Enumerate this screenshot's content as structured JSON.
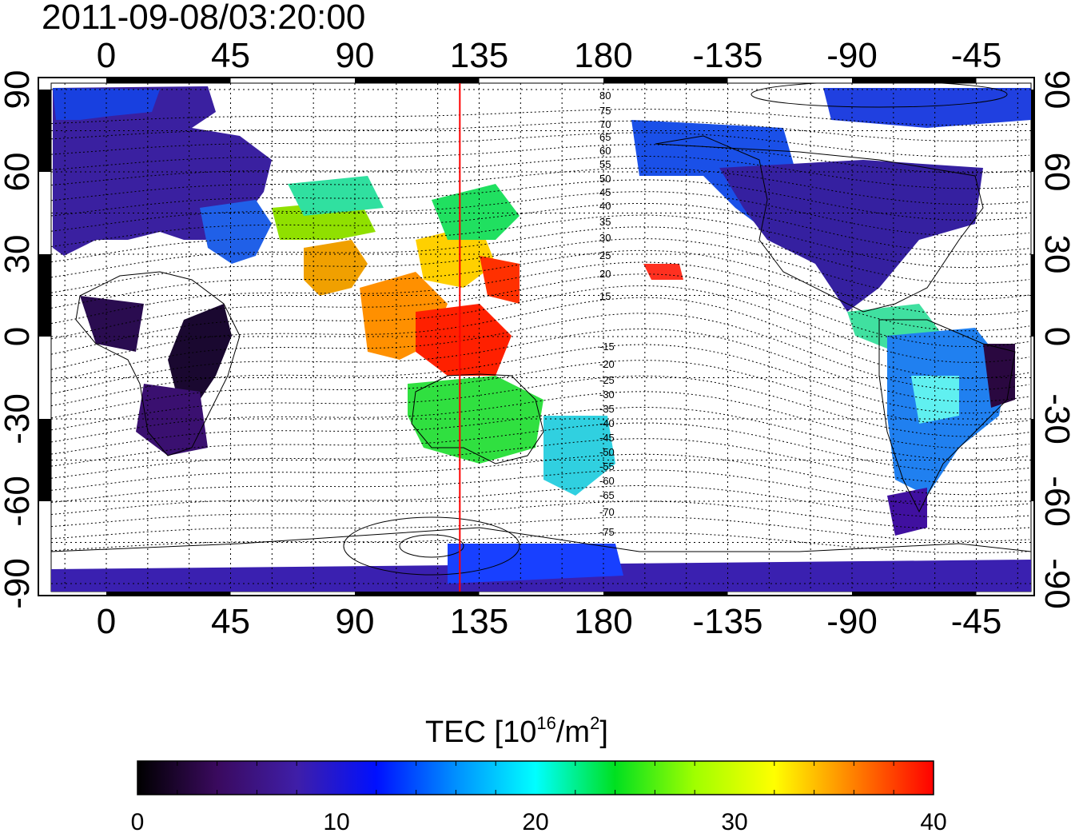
{
  "map": {
    "title": "2011-09-08/03:20:00",
    "projection": "equirectangular",
    "top_longitude_labels": [
      "0",
      "45",
      "90",
      "135",
      "180",
      "-135",
      "-90",
      "-45"
    ],
    "bottom_longitude_labels": [
      "0",
      "45",
      "90",
      "135",
      "180",
      "-135",
      "-90",
      "-45"
    ],
    "left_latitude_labels": [
      "90",
      "60",
      "30",
      "0",
      "-30",
      "-60",
      "-90"
    ],
    "right_latitude_labels": [
      "90",
      "60",
      "30",
      "0",
      "-30",
      "-60",
      "-90"
    ],
    "magnetic_latitude_labels": [
      "80",
      "75",
      "70",
      "65",
      "60",
      "55",
      "50",
      "45",
      "40",
      "35",
      "30",
      "25",
      "20",
      "15",
      "-15",
      "-20",
      "-25",
      "-30",
      "-35",
      "-40",
      "-45",
      "-50",
      "-55",
      "-60",
      "-65",
      "-70",
      "-75"
    ],
    "marker_line_longitude": 128,
    "marker_line_color": "#ff0000"
  },
  "colorbar": {
    "title_main": "TEC  [10",
    "title_exp1": "16",
    "title_mid": "/m",
    "title_exp2": "2",
    "title_end": "]",
    "min": 0,
    "max": 40,
    "tick_labels": [
      "0",
      "10",
      "20",
      "30",
      "40"
    ],
    "colors": [
      "#000000",
      "#3a0a5e",
      "#3f1ea8",
      "#0010ff",
      "#0090ff",
      "#00ffff",
      "#00e020",
      "#a0ff00",
      "#ffff00",
      "#ff8000",
      "#ff0000"
    ]
  }
}
